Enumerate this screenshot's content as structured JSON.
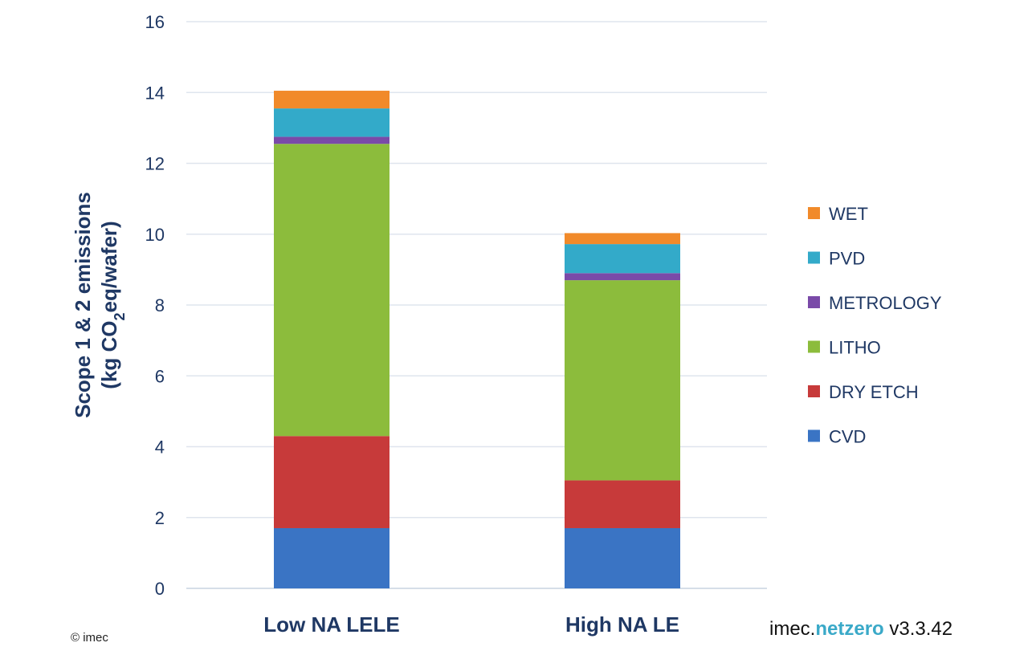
{
  "chart_data": {
    "type": "bar",
    "stacked": true,
    "categories": [
      "Low NA LELE",
      "High NA LE"
    ],
    "series": [
      {
        "name": "CVD",
        "color": "#3a74c4",
        "values": [
          1.7,
          1.7
        ]
      },
      {
        "name": "DRY ETCH",
        "color": "#c73a3a",
        "values": [
          2.6,
          1.35
        ]
      },
      {
        "name": "LITHO",
        "color": "#8cbc3c",
        "values": [
          8.25,
          5.65
        ]
      },
      {
        "name": "METROLOGY",
        "color": "#7a4aa8",
        "values": [
          0.2,
          0.2
        ]
      },
      {
        "name": "PVD",
        "color": "#33aac9",
        "values": [
          0.8,
          0.82
        ]
      },
      {
        "name": "WET",
        "color": "#f18a2a",
        "values": [
          0.5,
          0.31
        ]
      }
    ],
    "ylabel_line1": "Scope 1 & 2 emissions",
    "ylabel_line2_prefix": "(kg CO",
    "ylabel_line2_sub": "2",
    "ylabel_line2_suffix": "eq/wafer)",
    "ylim": [
      0,
      16
    ],
    "yticks": [
      "0",
      "2",
      "4",
      "6",
      "8",
      "10",
      "12",
      "14",
      "16"
    ],
    "grid": true,
    "legend_position": "right",
    "legend_order": [
      "WET",
      "PVD",
      "METROLOGY",
      "LITHO",
      "DRY ETCH",
      "CVD"
    ]
  },
  "footer": {
    "copyright": "© imec",
    "brand_prefix": "imec.",
    "brand_highlight": "netzero",
    "brand_version": " v3.3.42"
  }
}
